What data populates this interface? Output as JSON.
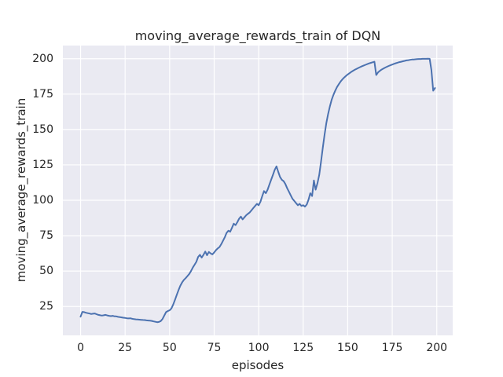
{
  "chart_data": {
    "type": "line",
    "title": "moving_average_rewards_train of DQN",
    "xlabel": "episodes",
    "ylabel": "moving_average_rewards_train",
    "x_ticks": [
      0,
      25,
      50,
      75,
      100,
      125,
      150,
      175,
      200
    ],
    "y_ticks": [
      25,
      50,
      75,
      100,
      125,
      150,
      175,
      200
    ],
    "xlim": [
      -9.95,
      208.95
    ],
    "ylim": [
      4.6,
      209.3
    ],
    "grid": true,
    "legend_position": "none",
    "style": "seaborn-darkgrid",
    "colors": {
      "line": "#4c72b0",
      "plot_bg": "#eaeaf2",
      "grid": "#ffffff",
      "text": "#262626",
      "fig_bg": "#ffffff"
    },
    "series": [
      {
        "name": "moving_average_rewards_train",
        "x_is_episode_index": true,
        "values": [
          17.8,
          21.2,
          21.0,
          20.6,
          20.3,
          20.0,
          19.7,
          19.9,
          20.1,
          19.5,
          19.1,
          18.8,
          18.6,
          18.8,
          19.1,
          18.7,
          18.4,
          18.2,
          18.4,
          18.1,
          18.0,
          17.7,
          17.5,
          17.3,
          17.1,
          16.9,
          16.7,
          16.6,
          16.7,
          16.3,
          16.1,
          15.9,
          15.8,
          15.7,
          15.6,
          15.5,
          15.4,
          15.2,
          15.1,
          15.0,
          14.8,
          14.5,
          14.2,
          13.9,
          14.1,
          14.7,
          16.2,
          18.6,
          21.0,
          21.8,
          22.3,
          23.6,
          26.4,
          29.6,
          33.2,
          36.6,
          39.6,
          42.0,
          43.8,
          45.0,
          46.5,
          48.0,
          50.0,
          52.5,
          54.5,
          56.5,
          60.0,
          61.5,
          59.5,
          61.5,
          63.8,
          61.2,
          63.5,
          62.5,
          61.8,
          63.2,
          64.8,
          66.0,
          67.0,
          69.0,
          71.5,
          74.0,
          77.0,
          78.5,
          77.8,
          80.5,
          83.5,
          82.5,
          84.5,
          87.0,
          88.5,
          86.5,
          88.0,
          89.5,
          90.5,
          91.5,
          93.0,
          94.5,
          96.0,
          97.5,
          96.5,
          99.0,
          103.0,
          106.5,
          105.0,
          107.5,
          111.0,
          114.5,
          118.0,
          121.5,
          124.0,
          120.0,
          116.5,
          114.5,
          113.5,
          111.5,
          108.5,
          106.0,
          103.5,
          101.0,
          99.5,
          98.0,
          96.5,
          97.5,
          96.0,
          96.5,
          95.5,
          97.0,
          100.5,
          105.0,
          103.0,
          114.0,
          107.5,
          112.0,
          118.0,
          127.0,
          137.0,
          146.5,
          154.5,
          161.0,
          166.5,
          171.0,
          174.5,
          177.5,
          180.0,
          182.0,
          183.9,
          185.4,
          186.7,
          187.9,
          188.9,
          189.8,
          190.7,
          191.5,
          192.2,
          192.9,
          193.5,
          194.1,
          194.7,
          195.2,
          195.7,
          196.2,
          196.7,
          197.1,
          197.5,
          197.9,
          188.5,
          190.3,
          191.4,
          192.3,
          193.0,
          193.7,
          194.3,
          194.9,
          195.4,
          195.9,
          196.4,
          196.8,
          197.2,
          197.6,
          197.9,
          198.2,
          198.5,
          198.8,
          199.0,
          199.2,
          199.4,
          199.5,
          199.6,
          199.7,
          199.8,
          199.8,
          199.9,
          199.9,
          199.9,
          200.0,
          199.9,
          192.0,
          177.4,
          179.3
        ]
      }
    ]
  }
}
